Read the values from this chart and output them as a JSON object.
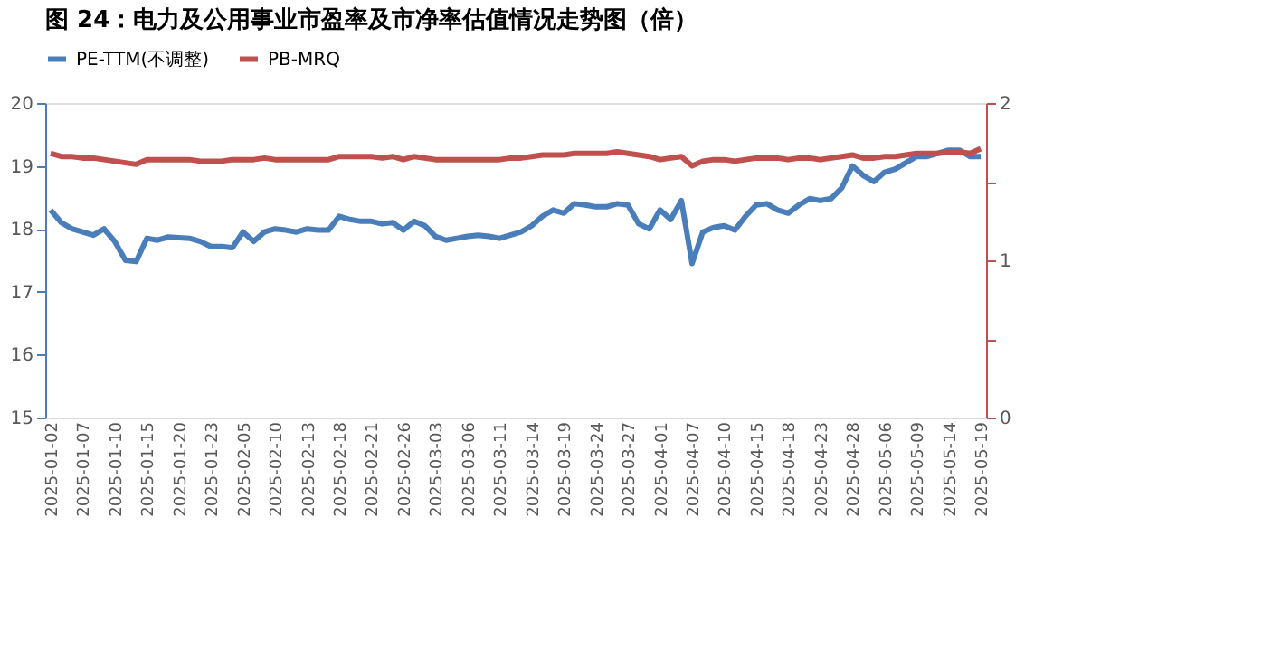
{
  "chart_data": {
    "type": "line",
    "title": "图 24：电力及公用事业市盈率及市净率估值情况走势图（倍）",
    "categories": [
      "2025-01-02",
      null,
      null,
      "2025-01-07",
      null,
      null,
      "2025-01-10",
      null,
      null,
      "2025-01-15",
      null,
      null,
      "2025-01-20",
      null,
      null,
      "2025-01-23",
      null,
      null,
      "2025-02-05",
      null,
      null,
      "2025-02-10",
      null,
      null,
      "2025-02-13",
      null,
      null,
      "2025-02-18",
      null,
      null,
      "2025-02-21",
      null,
      null,
      "2025-02-26",
      null,
      null,
      "2025-03-03",
      null,
      null,
      "2025-03-06",
      null,
      null,
      "2025-03-11",
      null,
      null,
      "2025-03-14",
      null,
      null,
      "2025-03-19",
      null,
      null,
      "2025-03-24",
      null,
      null,
      "2025-03-27",
      null,
      null,
      "2025-04-01",
      null,
      null,
      "2025-04-07",
      null,
      null,
      "2025-04-10",
      null,
      null,
      "2025-04-15",
      null,
      null,
      "2025-04-18",
      null,
      null,
      "2025-04-23",
      null,
      null,
      "2025-04-28",
      null,
      null,
      "2025-05-06",
      null,
      null,
      "2025-05-09",
      null,
      null,
      "2025-05-14",
      null,
      null,
      "2025-05-19"
    ],
    "series": [
      {
        "name": "PE-TTM(不调整)",
        "color": "#4a7ebb",
        "values": [
          18.3,
          18.1,
          18.0,
          17.95,
          17.9,
          18.0,
          17.8,
          17.5,
          17.48,
          17.85,
          17.82,
          17.87,
          17.86,
          17.85,
          17.8,
          17.72,
          17.72,
          17.7,
          17.95,
          17.8,
          17.95,
          18.0,
          17.98,
          17.95,
          18.0,
          17.98,
          17.98,
          18.2,
          18.15,
          18.12,
          18.12,
          18.08,
          18.1,
          17.98,
          18.12,
          18.05,
          17.88,
          17.82,
          17.85,
          17.88,
          17.9,
          17.88,
          17.85,
          17.9,
          17.95,
          18.05,
          18.2,
          18.3,
          18.25,
          18.4,
          18.38,
          18.35,
          18.35,
          18.4,
          18.38,
          18.08,
          18.0,
          18.3,
          18.15,
          18.45,
          17.45,
          17.95,
          18.02,
          18.05,
          17.98,
          18.2,
          18.38,
          18.4,
          18.3,
          18.25,
          18.38,
          18.48,
          18.45,
          18.48,
          18.65,
          19.0,
          18.85,
          18.75,
          18.9,
          18.95,
          19.05,
          19.15,
          19.15,
          19.2,
          19.25,
          19.25,
          19.15,
          19.15
        ]
      },
      {
        "name": "PB-MRQ",
        "color": "#c0504d",
        "axis": "y2",
        "values": [
          1.68,
          1.66,
          1.66,
          1.65,
          1.65,
          1.64,
          1.63,
          1.62,
          1.61,
          1.64,
          1.64,
          1.64,
          1.64,
          1.64,
          1.63,
          1.63,
          1.63,
          1.64,
          1.64,
          1.64,
          1.65,
          1.64,
          1.64,
          1.64,
          1.64,
          1.64,
          1.64,
          1.66,
          1.66,
          1.66,
          1.66,
          1.65,
          1.66,
          1.64,
          1.66,
          1.65,
          1.64,
          1.64,
          1.64,
          1.64,
          1.64,
          1.64,
          1.64,
          1.65,
          1.65,
          1.66,
          1.67,
          1.67,
          1.67,
          1.68,
          1.68,
          1.68,
          1.68,
          1.69,
          1.68,
          1.67,
          1.66,
          1.64,
          1.65,
          1.66,
          1.6,
          1.63,
          1.64,
          1.64,
          1.63,
          1.64,
          1.65,
          1.65,
          1.65,
          1.64,
          1.65,
          1.65,
          1.64,
          1.65,
          1.66,
          1.67,
          1.65,
          1.65,
          1.66,
          1.66,
          1.67,
          1.68,
          1.68,
          1.68,
          1.69,
          1.69,
          1.68,
          1.71
        ]
      }
    ],
    "ylim": [
      15,
      20
    ],
    "yticks": [
      15,
      16,
      17,
      18,
      19,
      20
    ],
    "y2lim": [
      0,
      2
    ],
    "y2ticks": [
      0,
      {
        "value": 0.5,
        "label": null
      },
      1,
      {
        "value": 1.5,
        "label": null
      },
      2
    ],
    "legend": "top",
    "grid": false,
    "line_style": "solid",
    "marker": "none"
  }
}
